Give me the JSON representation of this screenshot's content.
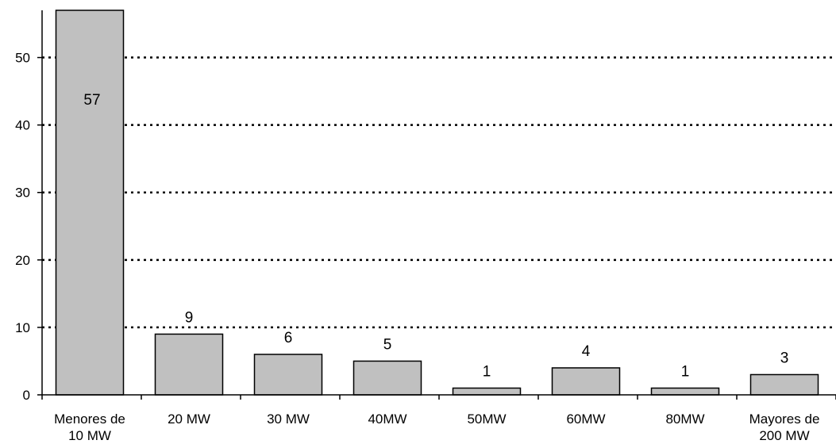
{
  "chart_data": {
    "type": "bar",
    "title": "",
    "xlabel": "",
    "ylabel": "",
    "ylim": [
      0,
      57
    ],
    "yticks": [
      0,
      10,
      20,
      30,
      40,
      50
    ],
    "grid": "horizontal dotted",
    "colors": {
      "bar_fill": "#c0c0c0",
      "bar_stroke": "#000000",
      "grid": "#000000"
    },
    "categories": [
      [
        "Menores de",
        "10 MW"
      ],
      [
        "20 MW"
      ],
      [
        "30 MW"
      ],
      [
        "40MW"
      ],
      [
        "50MW"
      ],
      [
        "60MW"
      ],
      [
        "80MW"
      ],
      [
        "Mayores de",
        "200 MW"
      ]
    ],
    "values": [
      57,
      9,
      6,
      5,
      1,
      4,
      1,
      3
    ]
  }
}
